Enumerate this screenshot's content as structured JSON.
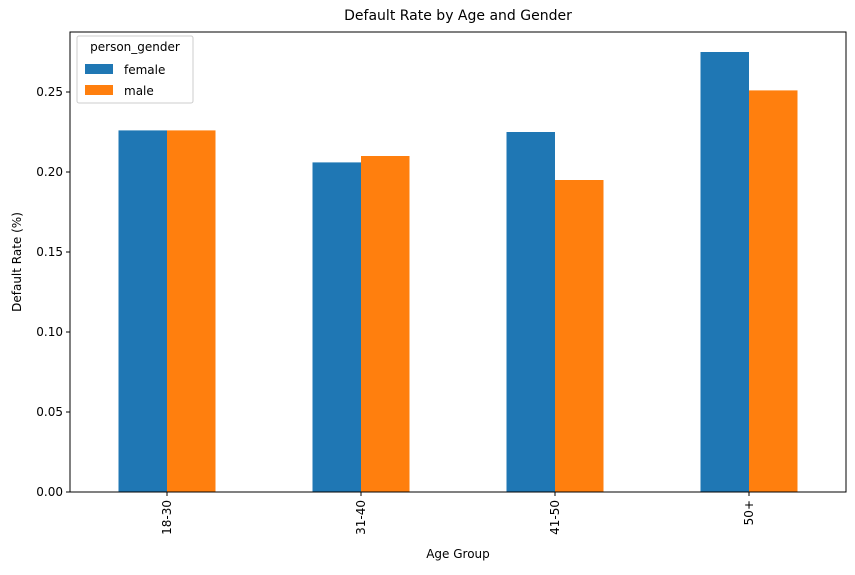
{
  "chart_data": {
    "type": "bar",
    "title": "Default Rate by Age and Gender",
    "xlabel": "Age Group",
    "ylabel": "Default Rate (%)",
    "categories": [
      "18-30",
      "31-40",
      "41-50",
      "50+"
    ],
    "series": [
      {
        "name": "female",
        "color": "#1f77b4",
        "values": [
          0.226,
          0.206,
          0.225,
          0.275
        ]
      },
      {
        "name": "male",
        "color": "#ff7f0e",
        "values": [
          0.226,
          0.21,
          0.195,
          0.251
        ]
      }
    ],
    "ylim": [
      0,
      0.2875
    ],
    "yticks": [
      "0.00",
      "0.05",
      "0.10",
      "0.15",
      "0.20",
      "0.25"
    ],
    "legend": {
      "title": "person_gender",
      "position": "top-left"
    },
    "grid": false
  }
}
